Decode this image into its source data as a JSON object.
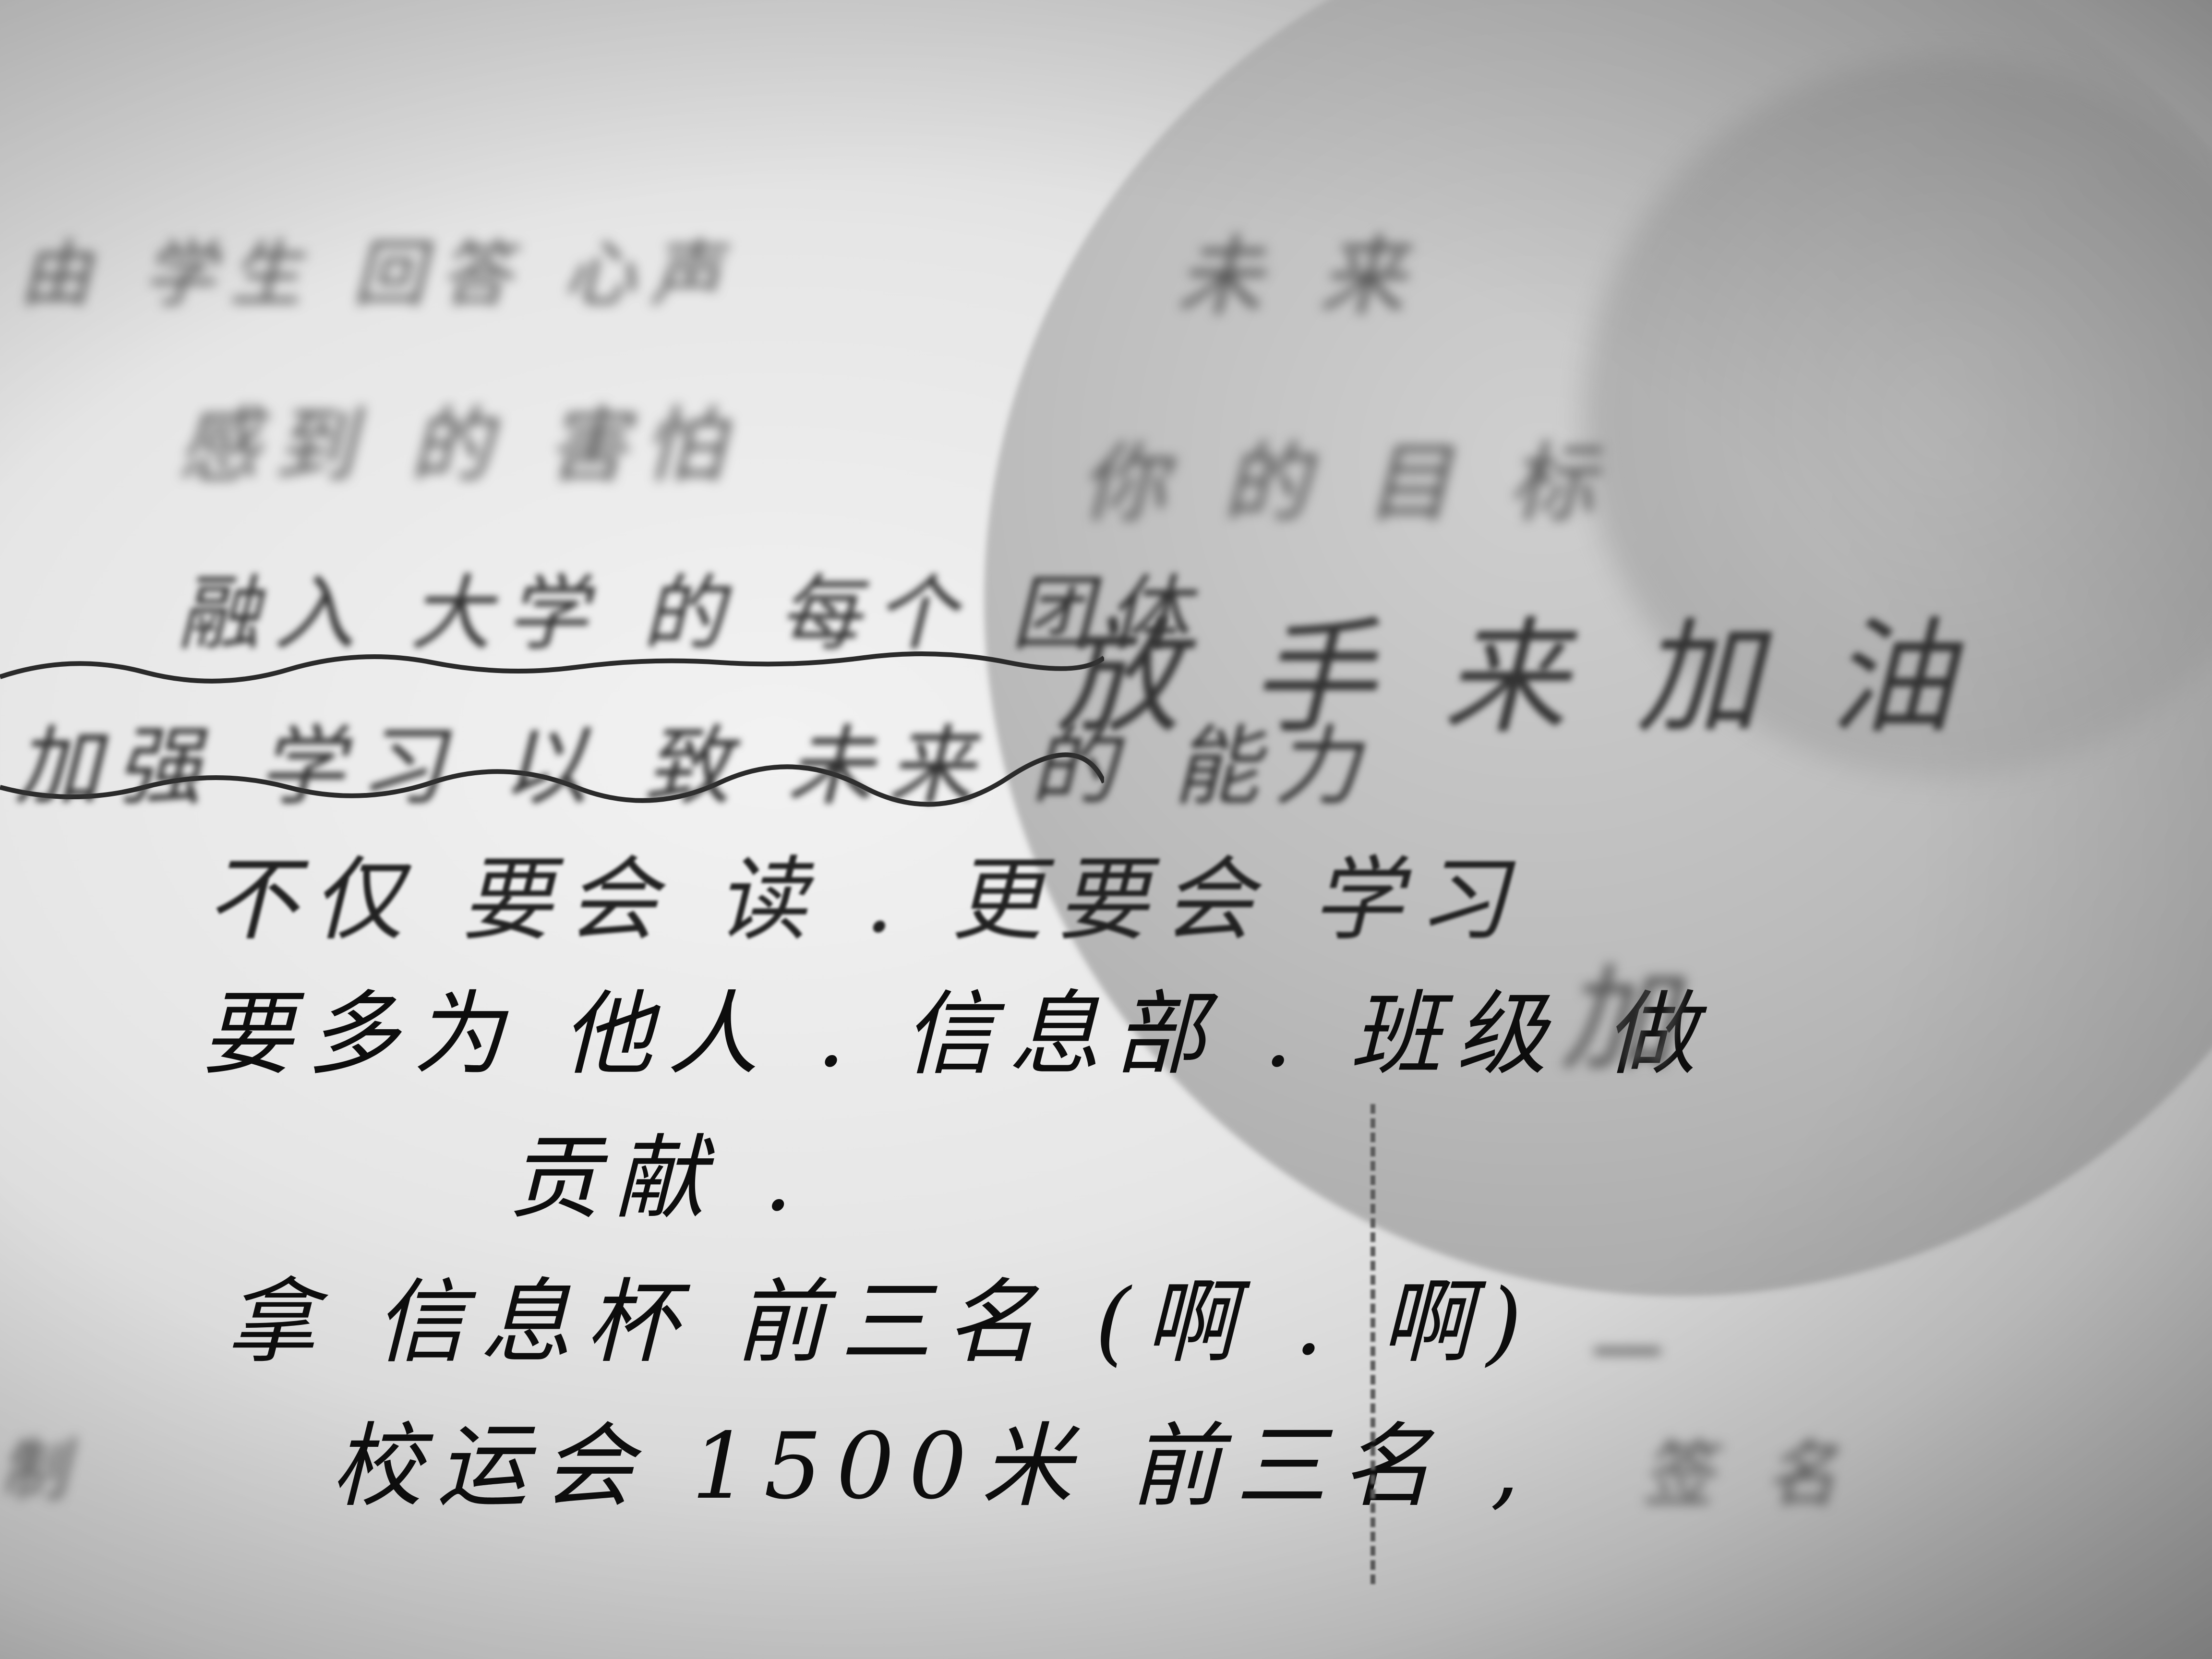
{
  "photo": {
    "description_tag": "handwritten-note",
    "lines_left": [
      "由 学生 回答 心声",
      "感到 的 害怕",
      "融入 大学 的 每个 团体",
      "加强 学习 以 致 未来 的 能力",
      "不仅 要会 读 . 更要会 学习",
      "要多为 他人 . 信息部 . 班级 做",
      "贡献 .",
      "拿 信息杯 前三名 (啊 . 啊)",
      "校运会 1500米 前三名 ,"
    ],
    "lines_right": [
      "未 来",
      "你 的 目 标",
      "放 手 来 加 油",
      "加",
      "一",
      "签 名"
    ],
    "edge_text": "制"
  }
}
